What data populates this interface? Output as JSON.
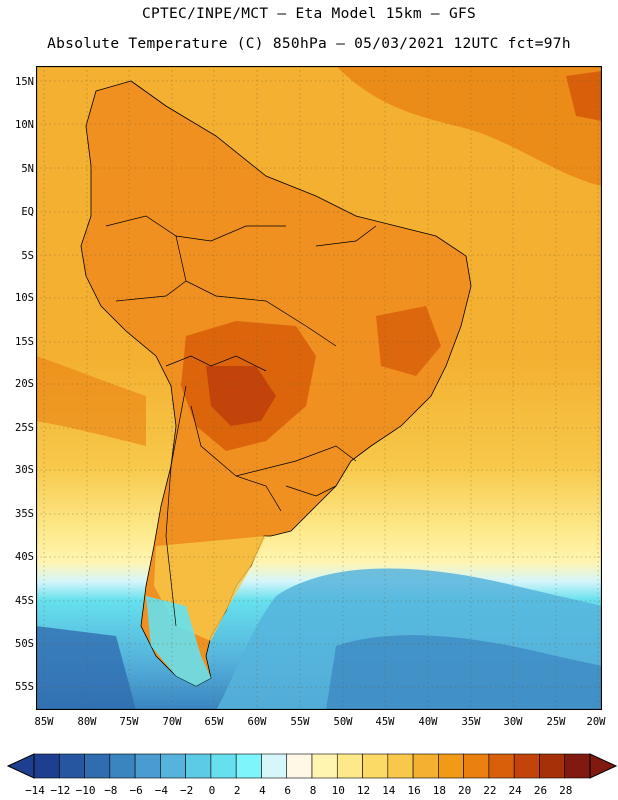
{
  "header": {
    "line1": "CPTEC/INPE/MCT –  Eta Model 15km – GFS",
    "line2": "Absolute Temperature (C) 850hPa – 05/03/2021 12UTC fct=97h"
  },
  "axes": {
    "lat_labels": [
      "15N",
      "10N",
      "5N",
      "EQ",
      "5S",
      "10S",
      "15S",
      "20S",
      "25S",
      "30S",
      "35S",
      "40S",
      "45S",
      "50S",
      "55S"
    ],
    "lon_labels": [
      "85W",
      "80W",
      "75W",
      "70W",
      "65W",
      "60W",
      "55W",
      "50W",
      "45W",
      "40W",
      "35W",
      "30W",
      "25W",
      "20W"
    ]
  },
  "colorbar": {
    "labels": [
      "-14",
      "-12",
      "-10",
      "-8",
      "-6",
      "-4",
      "-2",
      "0",
      "2",
      "4",
      "6",
      "8",
      "10",
      "12",
      "14",
      "16",
      "18",
      "20",
      "22",
      "24",
      "26",
      "28"
    ],
    "colors": [
      "#1e3f8f",
      "#2756a0",
      "#2f6db0",
      "#3a84c0",
      "#4a9bcf",
      "#56b4dc",
      "#5ccce6",
      "#66e0ee",
      "#7df5fa",
      "#d6f6fa",
      "#fff8e6",
      "#fff5b0",
      "#fde98a",
      "#fbda66",
      "#f7c84a",
      "#f4b030",
      "#f09a18",
      "#e98010",
      "#d9600a",
      "#c2440a",
      "#a63008",
      "#801a10"
    ]
  },
  "map_colors": {
    "ocean_warm": "#f4b030",
    "ocean_mid": "#f7c84a",
    "land_hot": "#e98010",
    "land_hotter": "#d9600a",
    "cold_shelf": "#5ccce6",
    "cold_deep": "#2f6db0",
    "very_cold": "#1e3f8f"
  }
}
